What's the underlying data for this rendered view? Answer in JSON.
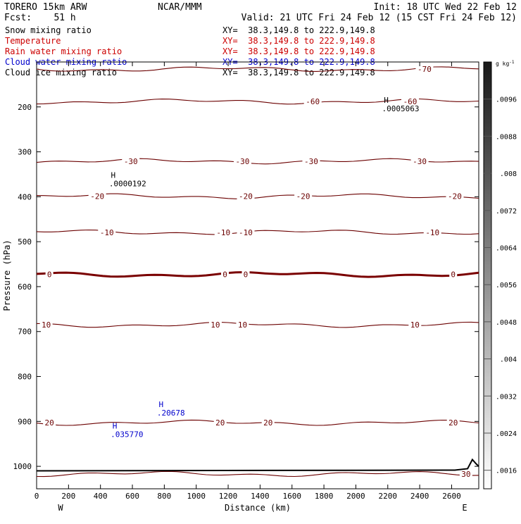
{
  "header": {
    "model": "TORERO   15km ARW",
    "center": "NCAR/MMM",
    "init": "Init: 18 UTC Wed 22 Feb 12",
    "fcst": "Fcst:    51 h",
    "valid": "Valid: 21 UTC Fri 24 Feb 12 (15 CST Fri 24 Feb 12)"
  },
  "colors": {
    "black": "#000000",
    "red": "#cc0000",
    "blue": "#0000cc",
    "contour": "#6b0000",
    "contour_bold": "#7a0000",
    "cloud": "#0000cc"
  },
  "fields": [
    {
      "name": "Snow mixing ratio",
      "xy": "XY=  38.3,149.8 to 222.9,149.8",
      "color": "#000000"
    },
    {
      "name": "Temperature",
      "xy": "XY=  38.3,149.8 to 222.9,149.8",
      "color": "#cc0000"
    },
    {
      "name": "Rain water mixing ratio",
      "xy": "XY=  38.3,149.8 to 222.9,149.8",
      "color": "#cc0000"
    },
    {
      "name": "Cloud water mixing ratio",
      "xy": "XY=  38.3,149.8 to 222.9,149.8",
      "color": "#0000cc"
    },
    {
      "name": "Cloud ice mixing ratio",
      "xy": "XY=  38.3,149.8 to 222.9,149.8",
      "color": "#000000"
    }
  ],
  "chart_data": {
    "type": "contour cross-section",
    "xlabel": "Distance (km)",
    "ylabel": "Pressure (hPa)",
    "x_ticks": [
      0,
      200,
      400,
      600,
      800,
      1000,
      1200,
      1400,
      1600,
      1800,
      2000,
      2200,
      2400,
      2600
    ],
    "y_ticks": [
      200,
      300,
      400,
      500,
      600,
      700,
      800,
      900,
      1000
    ],
    "xlim": [
      0,
      2770
    ],
    "ylim": [
      1050,
      100
    ],
    "x_end_labels": {
      "left": "W",
      "right": "E"
    },
    "colorbar": {
      "unit": "g kg-1",
      "ticks": [
        ".0016",
        ".0024",
        ".0032",
        ".004",
        ".0048",
        ".0056",
        ".0064",
        ".0072",
        ".008",
        ".0088",
        ".0096"
      ],
      "range": [
        0.0012,
        0.0104
      ]
    },
    "temperature_contours": [
      {
        "pressure": 116,
        "labels": [
          {
            "x": 2430,
            "text": "-70"
          }
        ]
      },
      {
        "pressure": 188,
        "labels": [
          {
            "x": 1730,
            "text": "-60"
          },
          {
            "x": 2340,
            "text": "-60"
          }
        ]
      },
      {
        "pressure": 321,
        "labels": [
          {
            "x": 590,
            "text": "-30"
          },
          {
            "x": 1290,
            "text": "-30"
          },
          {
            "x": 1720,
            "text": "-30"
          },
          {
            "x": 2400,
            "text": "-30"
          }
        ]
      },
      {
        "pressure": 399,
        "labels": [
          {
            "x": 380,
            "text": "-20"
          },
          {
            "x": 1310,
            "text": "-20"
          },
          {
            "x": 1670,
            "text": "-20"
          },
          {
            "x": 2620,
            "text": "-20"
          }
        ]
      },
      {
        "pressure": 479,
        "labels": [
          {
            "x": 440,
            "text": "-10"
          },
          {
            "x": 1170,
            "text": "-10"
          },
          {
            "x": 1310,
            "text": "-10"
          },
          {
            "x": 2480,
            "text": "-10"
          }
        ]
      },
      {
        "pressure": 573,
        "bold": true,
        "labels": [
          {
            "x": 80,
            "text": "0"
          },
          {
            "x": 1180,
            "text": "0"
          },
          {
            "x": 1310,
            "text": "0"
          },
          {
            "x": 2610,
            "text": "0"
          }
        ]
      },
      {
        "pressure": 685,
        "labels": [
          {
            "x": 60,
            "text": "10"
          },
          {
            "x": 1120,
            "text": "10"
          },
          {
            "x": 1290,
            "text": "10"
          },
          {
            "x": 2370,
            "text": "10"
          }
        ]
      },
      {
        "pressure": 903,
        "labels": [
          {
            "x": 80,
            "text": "20"
          },
          {
            "x": 1150,
            "text": "20"
          },
          {
            "x": 1450,
            "text": "20"
          },
          {
            "x": 2610,
            "text": "20"
          }
        ]
      },
      {
        "pressure": 1017,
        "labels": [
          {
            "x": 2690,
            "text": "30"
          }
        ]
      }
    ],
    "extrema": [
      {
        "x": 2190,
        "pressure": 191,
        "value": ".0005063",
        "color": "black"
      },
      {
        "x": 480,
        "pressure": 358,
        "value": ".0000192",
        "color": "black"
      },
      {
        "x": 780,
        "pressure": 868,
        "value": ".20678",
        "color": "blue"
      },
      {
        "x": 490,
        "pressure": 916,
        "value": ".035770",
        "color": "blue"
      }
    ]
  }
}
